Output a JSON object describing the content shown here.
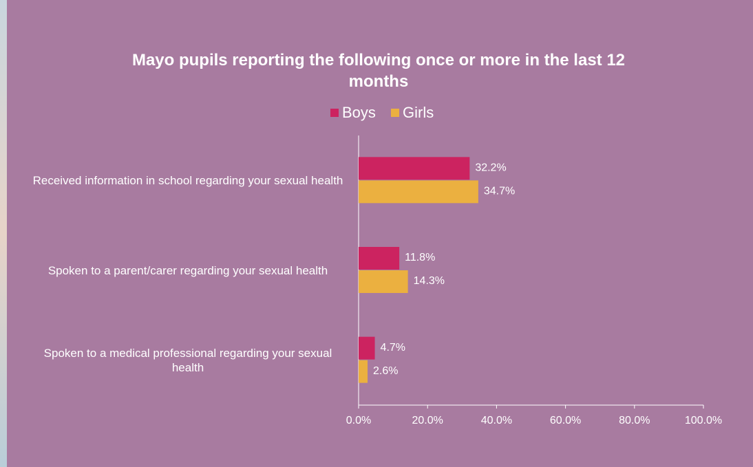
{
  "chart_data": {
    "type": "bar",
    "orientation": "horizontal",
    "title": "Mayo pupils reporting the following once or more in the last 12 months",
    "categories": [
      "Received information in school regarding your sexual health",
      "Spoken to a parent/carer regarding your sexual health",
      "Spoken to a medical professional regarding your sexual health"
    ],
    "series": [
      {
        "name": "Boys",
        "color": "#cc2360",
        "values": [
          32.2,
          11.8,
          4.7
        ],
        "value_labels": [
          "32.2%",
          "11.8%",
          "4.7%"
        ]
      },
      {
        "name": "Girls",
        "color": "#ebb040",
        "values": [
          34.7,
          14.3,
          2.6
        ],
        "value_labels": [
          "34.7%",
          "14.3%",
          "2.6%"
        ]
      }
    ],
    "xlim": [
      0,
      100
    ],
    "xticks": [
      {
        "value": 0,
        "label": "0.0%"
      },
      {
        "value": 20,
        "label": "20.0%"
      },
      {
        "value": 40,
        "label": "40.0%"
      },
      {
        "value": 60,
        "label": "60.0%"
      },
      {
        "value": 80,
        "label": "80.0%"
      },
      {
        "value": 100,
        "label": "100.0%"
      }
    ],
    "legend": "top"
  }
}
